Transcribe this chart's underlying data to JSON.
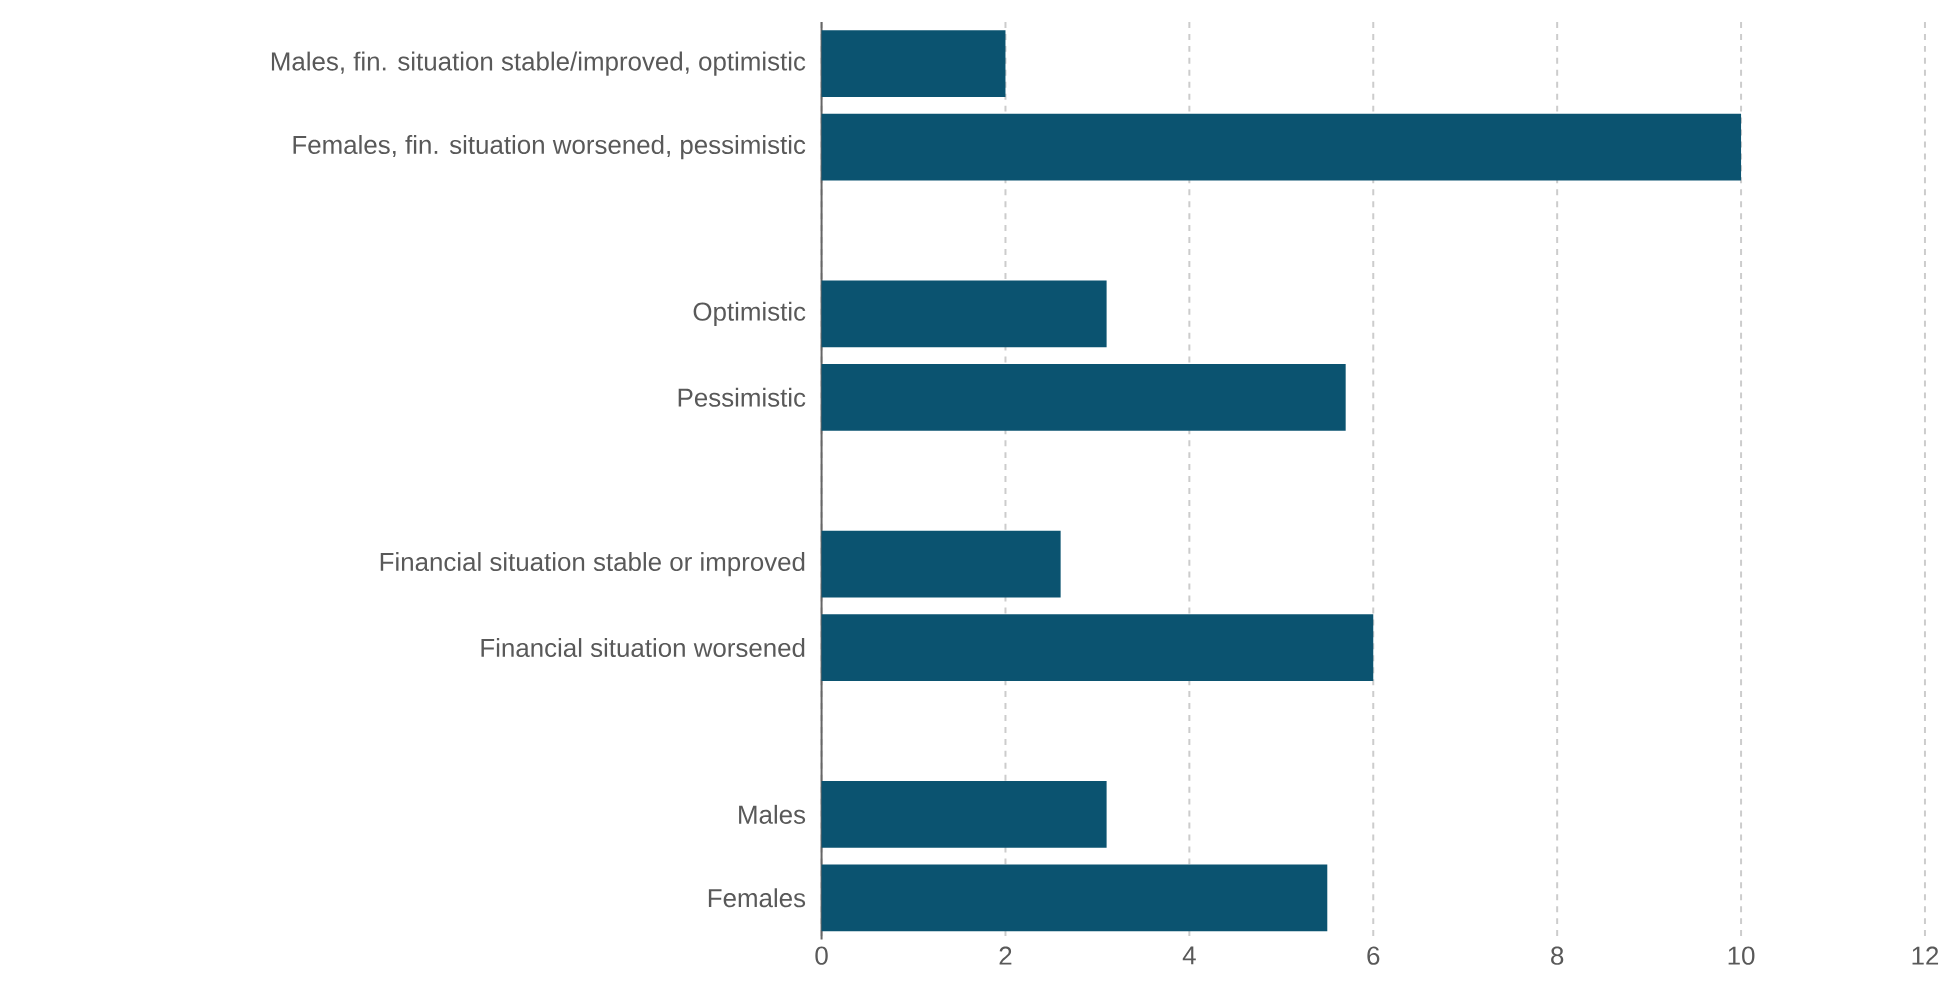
{
  "chart_data": {
    "type": "bar",
    "orientation": "horizontal",
    "categories": [
      "Males, fin. situation stable/improved, optimistic",
      "Females, fin. situation worsened, pessimistic",
      null,
      "Optimistic",
      "Pessimistic",
      null,
      "Financial situation stable or improved",
      "Financial situation worsened",
      null,
      "Males",
      "Females"
    ],
    "values": [
      2.0,
      10.0,
      null,
      3.1,
      5.7,
      null,
      2.6,
      6.0,
      null,
      3.1,
      5.5
    ],
    "color": "#0b5370",
    "xlim": [
      0,
      12
    ],
    "xticks": [
      0,
      2,
      4,
      6,
      8,
      10,
      12
    ],
    "grid": "x"
  }
}
